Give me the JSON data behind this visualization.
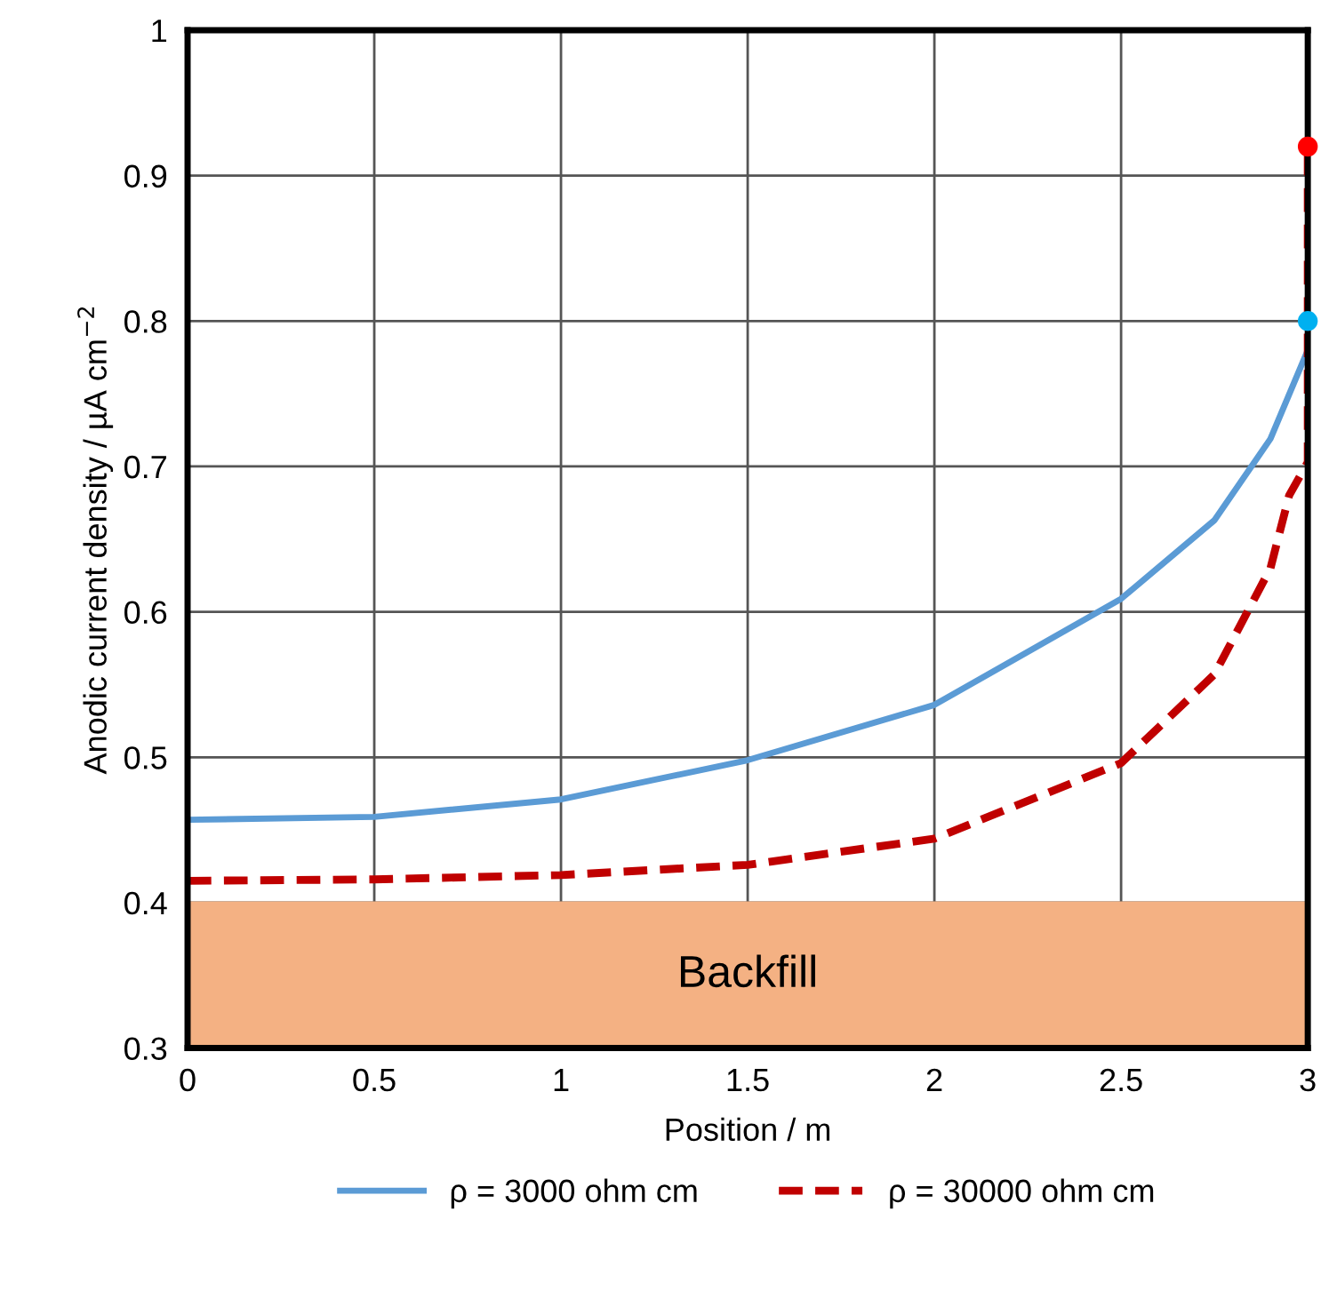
{
  "chart_data": {
    "type": "line",
    "xlabel": "Position / m",
    "ylabel": "Anodic current density / µA cm$^{−2}$",
    "xlim": [
      0,
      3
    ],
    "ylim": [
      0.3,
      1
    ],
    "xticks": [
      0,
      0.5,
      1,
      1.5,
      2,
      2.5,
      3
    ],
    "yticks": [
      0.3,
      0.4,
      0.5,
      0.6,
      0.7,
      0.8,
      0.9,
      1
    ],
    "grid": true,
    "legend": "bottom",
    "bands": [
      {
        "axis": "y",
        "from": 0.3,
        "to": 0.4,
        "label": "Backfill",
        "color": "#f4b183"
      }
    ],
    "series": [
      {
        "name": "ρ = 3000 ohm cm",
        "color": "#5b9bd5",
        "line_style": "solid",
        "marker": "none",
        "x": [
          0,
          0.5,
          1,
          1.5,
          2,
          2.5,
          2.75,
          2.9,
          3
        ],
        "values": [
          0.457,
          0.459,
          0.471,
          0.498,
          0.536,
          0.609,
          0.663,
          0.719,
          0.78
        ]
      },
      {
        "name": "ρ = 30000 ohm cm",
        "color": "#c00000",
        "line_style": "dashed",
        "marker": "none",
        "x": [
          0,
          0.5,
          1,
          1.5,
          2,
          2.5,
          2.75,
          2.9,
          2.95,
          3,
          3
        ],
        "values": [
          0.415,
          0.416,
          0.419,
          0.426,
          0.444,
          0.496,
          0.557,
          0.63,
          0.68,
          0.703,
          0.92
        ]
      },
      {
        "type": "scatter",
        "color": "#00b0f0",
        "marker": "circle",
        "x": [
          3
        ],
        "values": [
          0.8
        ]
      },
      {
        "type": "scatter",
        "color": "#ff0000",
        "marker": "circle",
        "x": [
          3
        ],
        "values": [
          0.92
        ]
      }
    ]
  }
}
